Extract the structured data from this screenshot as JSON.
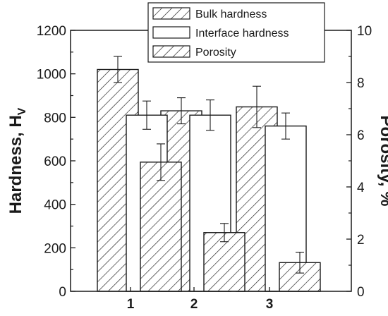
{
  "chart_data": {
    "type": "bar",
    "categories": [
      "1",
      "2",
      "3"
    ],
    "series": [
      {
        "name": "Bulk hardness",
        "axis": "left",
        "pattern": "hatch",
        "values": [
          1020,
          830,
          848
        ],
        "errors": [
          60,
          60,
          95
        ]
      },
      {
        "name": "Interface hardness",
        "axis": "left",
        "pattern": "none",
        "values": [
          810,
          810,
          760
        ],
        "errors": [
          65,
          70,
          60
        ]
      },
      {
        "name": "Porosity",
        "axis": "right",
        "pattern": "hatch",
        "values": [
          4.95,
          2.25,
          1.1
        ],
        "errors": [
          0.7,
          0.35,
          0.4
        ]
      }
    ],
    "ylabel": "Hardness, Hv",
    "ylabel_main": "Hardness, H",
    "ylabel_sub": "V",
    "y2label": "Porosity, %",
    "ylim": [
      0,
      1200
    ],
    "y2lim": [
      0,
      10
    ],
    "yticks": [
      "0",
      "200",
      "400",
      "600",
      "800",
      "1000",
      "1200"
    ],
    "y2ticks": [
      "0",
      "2",
      "4",
      "6",
      "8",
      "10"
    ],
    "grid": false,
    "legend_position": "top-right",
    "colors": {
      "bar_stroke": "#1a1a1a",
      "bar_fill": "#ffffff",
      "hatch": "#1a1a1a"
    }
  }
}
